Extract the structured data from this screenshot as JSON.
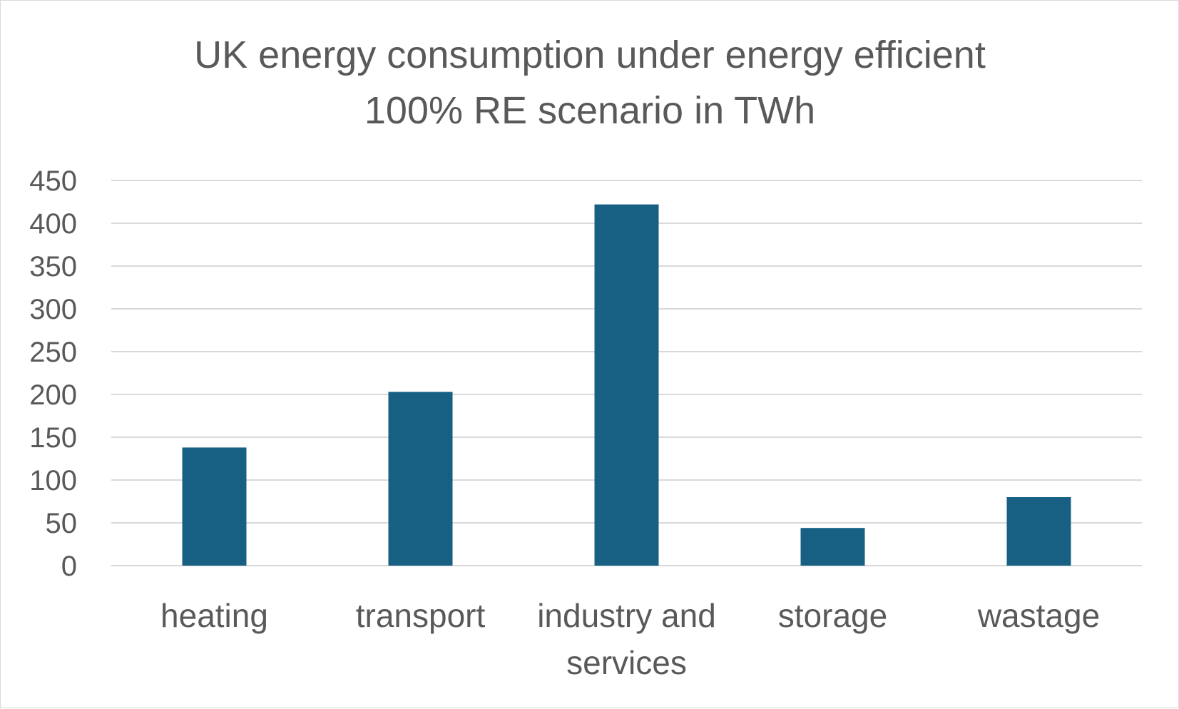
{
  "chart_data": {
    "type": "bar",
    "title_lines": [
      "UK energy consumption under energy efficient",
      "100% RE scenario in TWh"
    ],
    "categories": [
      [
        "heating"
      ],
      [
        "transport"
      ],
      [
        "industry and",
        "services"
      ],
      [
        "storage"
      ],
      [
        "wastage"
      ]
    ],
    "values": [
      138,
      203,
      422,
      44,
      80
    ],
    "ylim": [
      0,
      450
    ],
    "yticks": [
      0,
      50,
      100,
      150,
      200,
      250,
      300,
      350,
      400,
      450
    ],
    "grid": true,
    "legend": "none",
    "xlabel": "",
    "ylabel": "",
    "colors": {
      "bar": "#176083",
      "grid": "#d9d9d9",
      "text": "#595959",
      "border": "#d9d9d9"
    }
  }
}
